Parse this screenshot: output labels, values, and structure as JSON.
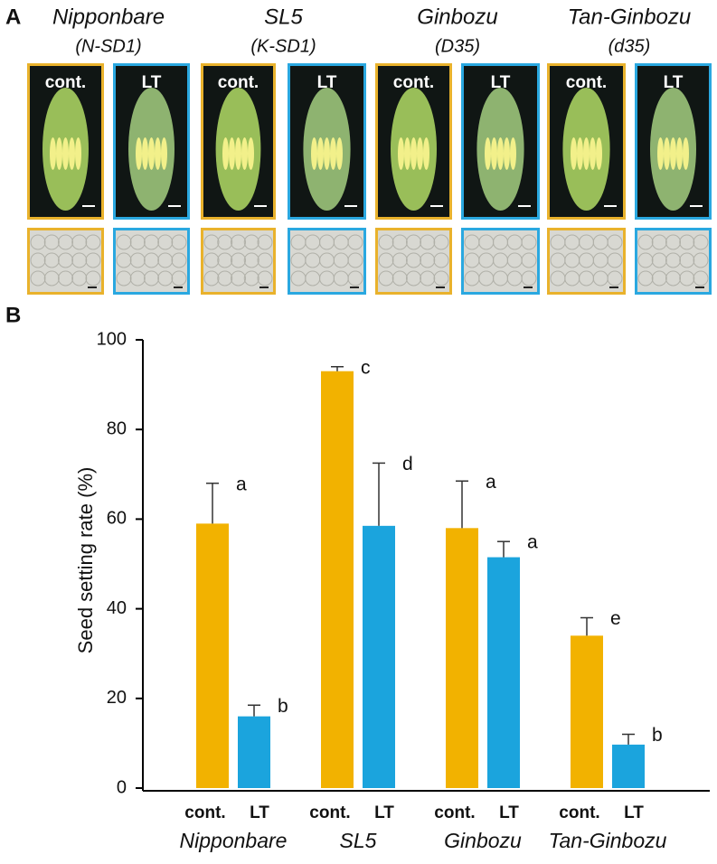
{
  "panel_a": {
    "label": "A",
    "columns": [
      {
        "name": "Nipponbare",
        "allele": "(N-SD1)"
      },
      {
        "name": "SL5",
        "allele": "(K-SD1)"
      },
      {
        "name": "Ginbozu",
        "allele": "(D35)"
      },
      {
        "name": "Tan-Ginbozu",
        "allele": "(d35)"
      }
    ],
    "image_labels": [
      "cont.",
      "LT"
    ]
  },
  "panel_b_label": "B",
  "chart_data": {
    "type": "bar",
    "y_label": "Seed setting rate (%)",
    "categories": [
      "Nipponbare",
      "SL5",
      "Ginbozu",
      "Tan-Ginbozu"
    ],
    "series": [
      {
        "name": "cont.",
        "color": "#f2b200",
        "values": [
          59,
          93,
          58,
          34
        ],
        "errors": [
          9,
          1,
          10.5,
          4
        ],
        "letters": [
          "a",
          "c",
          "a",
          "e"
        ]
      },
      {
        "name": "LT",
        "color": "#1ba4dd",
        "values": [
          16,
          58.5,
          51.5,
          9.7
        ],
        "errors": [
          2.5,
          14,
          3.5,
          2.3
        ],
        "letters": [
          "b",
          "d",
          "a",
          "b"
        ]
      }
    ],
    "ylim": [
      0,
      100
    ],
    "yticks": [
      0,
      20,
      40,
      60,
      80,
      100
    ],
    "grid": false
  }
}
